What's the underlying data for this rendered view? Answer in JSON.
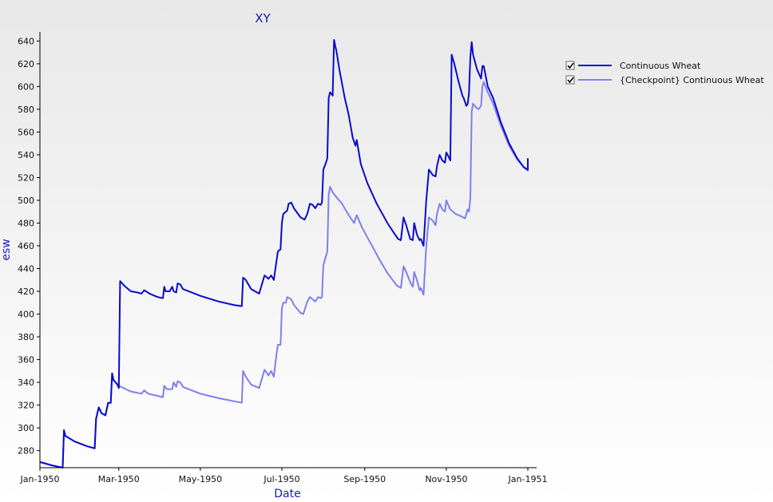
{
  "chart_data": {
    "type": "line",
    "title": "XY",
    "xlabel": "Date",
    "ylabel": "esw",
    "x_tick_labels": [
      "Jan-1950",
      "Mar-1950",
      "May-1950",
      "Jul-1950",
      "Sep-1950",
      "Nov-1950",
      "Jan-1951"
    ],
    "x_tick_dates": [
      "1950-01-01",
      "1950-03-01",
      "1950-05-01",
      "1950-07-01",
      "1950-09-01",
      "1950-11-01",
      "1951-01-01"
    ],
    "xlim": [
      "1950-01-01",
      "1951-01-01"
    ],
    "ylim": [
      265,
      648
    ],
    "y_ticks": [
      280,
      300,
      320,
      340,
      360,
      380,
      400,
      420,
      440,
      460,
      480,
      500,
      520,
      540,
      560,
      580,
      600,
      620,
      640
    ],
    "grid": false,
    "legend_position": "top-right",
    "series": [
      {
        "name": "Continuous Wheat",
        "color": "#0a0ad0",
        "checked": true,
        "points": [
          [
            "1950-01-01",
            270
          ],
          [
            "1950-01-10",
            267
          ],
          [
            "1950-01-18",
            265
          ],
          [
            "1950-01-19",
            298
          ],
          [
            "1950-01-20",
            293
          ],
          [
            "1950-01-27",
            288
          ],
          [
            "1950-02-05",
            284
          ],
          [
            "1950-02-11",
            282
          ],
          [
            "1950-02-12",
            308
          ],
          [
            "1950-02-14",
            318
          ],
          [
            "1950-02-16",
            313
          ],
          [
            "1950-02-19",
            311
          ],
          [
            "1950-02-21",
            322
          ],
          [
            "1950-02-23",
            322
          ],
          [
            "1950-02-24",
            348
          ],
          [
            "1950-02-25",
            342
          ],
          [
            "1950-02-28",
            338
          ],
          [
            "1950-03-01",
            335
          ],
          [
            "1950-03-02",
            429
          ],
          [
            "1950-03-05",
            425
          ],
          [
            "1950-03-10",
            420
          ],
          [
            "1950-03-15",
            419
          ],
          [
            "1950-03-18",
            418
          ],
          [
            "1950-03-20",
            421
          ],
          [
            "1950-03-24",
            418
          ],
          [
            "1950-03-30",
            415
          ],
          [
            "1950-04-03",
            414
          ],
          [
            "1950-04-04",
            424
          ],
          [
            "1950-04-05",
            420
          ],
          [
            "1950-04-08",
            420
          ],
          [
            "1950-04-10",
            424
          ],
          [
            "1950-04-11",
            420
          ],
          [
            "1950-04-13",
            419
          ],
          [
            "1950-04-14",
            427
          ],
          [
            "1950-04-16",
            426
          ],
          [
            "1950-04-18",
            422
          ],
          [
            "1950-05-01",
            416
          ],
          [
            "1950-05-15",
            411
          ],
          [
            "1950-05-26",
            408
          ],
          [
            "1950-06-01",
            407
          ],
          [
            "1950-06-02",
            432
          ],
          [
            "1950-06-04",
            430
          ],
          [
            "1950-06-08",
            422
          ],
          [
            "1950-06-14",
            418
          ],
          [
            "1950-06-17",
            430
          ],
          [
            "1950-06-18",
            434
          ],
          [
            "1950-06-20",
            432
          ],
          [
            "1950-06-21",
            431
          ],
          [
            "1950-06-23",
            434
          ],
          [
            "1950-06-25",
            430
          ],
          [
            "1950-06-27",
            447
          ],
          [
            "1950-06-28",
            455
          ],
          [
            "1950-06-30",
            457
          ],
          [
            "1950-07-01",
            480
          ],
          [
            "1950-07-02",
            488
          ],
          [
            "1950-07-05",
            491
          ],
          [
            "1950-07-06",
            497
          ],
          [
            "1950-07-08",
            498
          ],
          [
            "1950-07-10",
            493
          ],
          [
            "1950-07-15",
            485
          ],
          [
            "1950-07-18",
            483
          ],
          [
            "1950-07-20",
            488
          ],
          [
            "1950-07-22",
            497
          ],
          [
            "1950-07-24",
            496
          ],
          [
            "1950-07-26",
            493
          ],
          [
            "1950-07-28",
            497
          ],
          [
            "1950-07-30",
            496
          ],
          [
            "1950-07-31",
            498
          ],
          [
            "1950-08-01",
            527
          ],
          [
            "1950-08-03",
            533
          ],
          [
            "1950-08-04",
            537
          ],
          [
            "1950-08-05",
            590
          ],
          [
            "1950-08-06",
            595
          ],
          [
            "1950-08-08",
            592
          ],
          [
            "1950-08-09",
            641
          ],
          [
            "1950-08-11",
            630
          ],
          [
            "1950-08-13",
            615
          ],
          [
            "1950-08-17",
            590
          ],
          [
            "1950-08-20",
            575
          ],
          [
            "1950-08-23",
            555
          ],
          [
            "1950-08-25",
            548
          ],
          [
            "1950-08-26",
            553
          ],
          [
            "1950-08-29",
            532
          ],
          [
            "1950-09-03",
            515
          ],
          [
            "1950-09-10",
            497
          ],
          [
            "1950-09-18",
            480
          ],
          [
            "1950-09-23",
            471
          ],
          [
            "1950-09-26",
            466
          ],
          [
            "1950-09-28",
            465
          ],
          [
            "1950-09-30",
            485
          ],
          [
            "1950-10-02",
            478
          ],
          [
            "1950-10-05",
            466
          ],
          [
            "1950-10-07",
            465
          ],
          [
            "1950-10-08",
            480
          ],
          [
            "1950-10-10",
            470
          ],
          [
            "1950-10-12",
            465
          ],
          [
            "1950-10-13",
            466
          ],
          [
            "1950-10-15",
            460
          ],
          [
            "1950-10-17",
            500
          ],
          [
            "1950-10-19",
            527
          ],
          [
            "1950-10-22",
            522
          ],
          [
            "1950-10-24",
            521
          ],
          [
            "1950-10-25",
            530
          ],
          [
            "1950-10-27",
            540
          ],
          [
            "1950-10-29",
            535
          ],
          [
            "1950-10-31",
            533
          ],
          [
            "1950-11-01",
            542
          ],
          [
            "1950-11-02",
            540
          ],
          [
            "1950-11-04",
            535
          ],
          [
            "1950-11-05",
            628
          ],
          [
            "1950-11-07",
            620
          ],
          [
            "1950-11-10",
            605
          ],
          [
            "1950-11-13",
            592
          ],
          [
            "1950-11-14",
            590
          ],
          [
            "1950-11-16",
            583
          ],
          [
            "1950-11-17",
            585
          ],
          [
            "1950-11-18",
            594
          ],
          [
            "1950-11-19",
            626
          ],
          [
            "1950-11-20",
            639
          ],
          [
            "1950-11-21",
            628
          ],
          [
            "1950-11-24",
            615
          ],
          [
            "1950-11-27",
            607
          ],
          [
            "1950-11-28",
            618
          ],
          [
            "1950-11-29",
            618
          ],
          [
            "1950-12-02",
            600
          ],
          [
            "1950-12-06",
            590
          ],
          [
            "1950-12-12",
            568
          ],
          [
            "1950-12-18",
            550
          ],
          [
            "1950-12-24",
            537
          ],
          [
            "1950-12-29",
            529
          ],
          [
            "1951-01-01",
            527
          ],
          [
            "1951-01-01",
            537
          ]
        ]
      },
      {
        "name": "{Checkpoint} Continuous Wheat",
        "color": "#7f7ff0",
        "checked": true,
        "points": [
          [
            "1950-01-01",
            270
          ],
          [
            "1950-01-10",
            267
          ],
          [
            "1950-01-18",
            265
          ],
          [
            "1950-01-19",
            298
          ],
          [
            "1950-01-20",
            293
          ],
          [
            "1950-01-27",
            288
          ],
          [
            "1950-02-05",
            284
          ],
          [
            "1950-02-11",
            282
          ],
          [
            "1950-02-12",
            308
          ],
          [
            "1950-02-14",
            318
          ],
          [
            "1950-02-16",
            313
          ],
          [
            "1950-02-19",
            311
          ],
          [
            "1950-02-21",
            322
          ],
          [
            "1950-02-23",
            322
          ],
          [
            "1950-02-24",
            348
          ],
          [
            "1950-02-25",
            342
          ],
          [
            "1950-03-01",
            337
          ],
          [
            "1950-03-10",
            332
          ],
          [
            "1950-03-18",
            330
          ],
          [
            "1950-03-20",
            333
          ],
          [
            "1950-03-23",
            330
          ],
          [
            "1950-04-03",
            327
          ],
          [
            "1950-04-04",
            337
          ],
          [
            "1950-04-06",
            334
          ],
          [
            "1950-04-10",
            334
          ],
          [
            "1950-04-11",
            340
          ],
          [
            "1950-04-13",
            336
          ],
          [
            "1950-04-14",
            341
          ],
          [
            "1950-04-16",
            340
          ],
          [
            "1950-04-18",
            336
          ],
          [
            "1950-05-01",
            330
          ],
          [
            "1950-05-15",
            326
          ],
          [
            "1950-06-01",
            322
          ],
          [
            "1950-06-02",
            350
          ],
          [
            "1950-06-04",
            345
          ],
          [
            "1950-06-08",
            338
          ],
          [
            "1950-06-14",
            335
          ],
          [
            "1950-06-17",
            347
          ],
          [
            "1950-06-18",
            351
          ],
          [
            "1950-06-20",
            348
          ],
          [
            "1950-06-21",
            346
          ],
          [
            "1950-06-23",
            350
          ],
          [
            "1950-06-25",
            345
          ],
          [
            "1950-06-27",
            365
          ],
          [
            "1950-06-28",
            373
          ],
          [
            "1950-06-30",
            373
          ],
          [
            "1950-07-01",
            405
          ],
          [
            "1950-07-02",
            410
          ],
          [
            "1950-07-04",
            410
          ],
          [
            "1950-07-05",
            415
          ],
          [
            "1950-07-08",
            413
          ],
          [
            "1950-07-10",
            408
          ],
          [
            "1950-07-15",
            401
          ],
          [
            "1950-07-17",
            400
          ],
          [
            "1950-07-20",
            411
          ],
          [
            "1950-07-22",
            415
          ],
          [
            "1950-07-24",
            413
          ],
          [
            "1950-07-26",
            411
          ],
          [
            "1950-07-28",
            415
          ],
          [
            "1950-07-30",
            414
          ],
          [
            "1950-07-31",
            415
          ],
          [
            "1950-08-01",
            443
          ],
          [
            "1950-08-03",
            451
          ],
          [
            "1950-08-04",
            455
          ],
          [
            "1950-08-05",
            505
          ],
          [
            "1950-08-06",
            512
          ],
          [
            "1950-08-08",
            507
          ],
          [
            "1950-08-10",
            504
          ],
          [
            "1950-08-15",
            497
          ],
          [
            "1950-08-20",
            487
          ],
          [
            "1950-08-24",
            480
          ],
          [
            "1950-08-26",
            487
          ],
          [
            "1950-08-30",
            476
          ],
          [
            "1950-09-05",
            463
          ],
          [
            "1950-09-12",
            448
          ],
          [
            "1950-09-18",
            436
          ],
          [
            "1950-09-25",
            425
          ],
          [
            "1950-09-28",
            423
          ],
          [
            "1950-09-30",
            442
          ],
          [
            "1950-10-02",
            437
          ],
          [
            "1950-10-05",
            428
          ],
          [
            "1950-10-07",
            424
          ],
          [
            "1950-10-08",
            437
          ],
          [
            "1950-10-10",
            430
          ],
          [
            "1950-10-12",
            421
          ],
          [
            "1950-10-13",
            423
          ],
          [
            "1950-10-15",
            417
          ],
          [
            "1950-10-17",
            460
          ],
          [
            "1950-10-19",
            485
          ],
          [
            "1950-10-22",
            482
          ],
          [
            "1950-10-24",
            478
          ],
          [
            "1950-10-25",
            488
          ],
          [
            "1950-10-27",
            497
          ],
          [
            "1950-10-29",
            492
          ],
          [
            "1950-10-31",
            490
          ],
          [
            "1950-11-01",
            500
          ],
          [
            "1950-11-02",
            497
          ],
          [
            "1950-11-04",
            492
          ],
          [
            "1950-11-08",
            488
          ],
          [
            "1950-11-12",
            486
          ],
          [
            "1950-11-15",
            484
          ],
          [
            "1950-11-17",
            492
          ],
          [
            "1950-11-18",
            490
          ],
          [
            "1950-11-19",
            502
          ],
          [
            "1950-11-20",
            578
          ],
          [
            "1950-11-21",
            585
          ],
          [
            "1950-11-23",
            582
          ],
          [
            "1950-11-25",
            580
          ],
          [
            "1950-11-27",
            583
          ],
          [
            "1950-11-28",
            600
          ],
          [
            "1950-11-29",
            604
          ],
          [
            "1950-12-02",
            595
          ],
          [
            "1950-12-06",
            585
          ],
          [
            "1950-12-12",
            565
          ],
          [
            "1950-12-18",
            548
          ],
          [
            "1950-12-24",
            536
          ],
          [
            "1950-12-29",
            529
          ],
          [
            "1951-01-01",
            526
          ],
          [
            "1951-01-01",
            536
          ]
        ]
      }
    ]
  }
}
